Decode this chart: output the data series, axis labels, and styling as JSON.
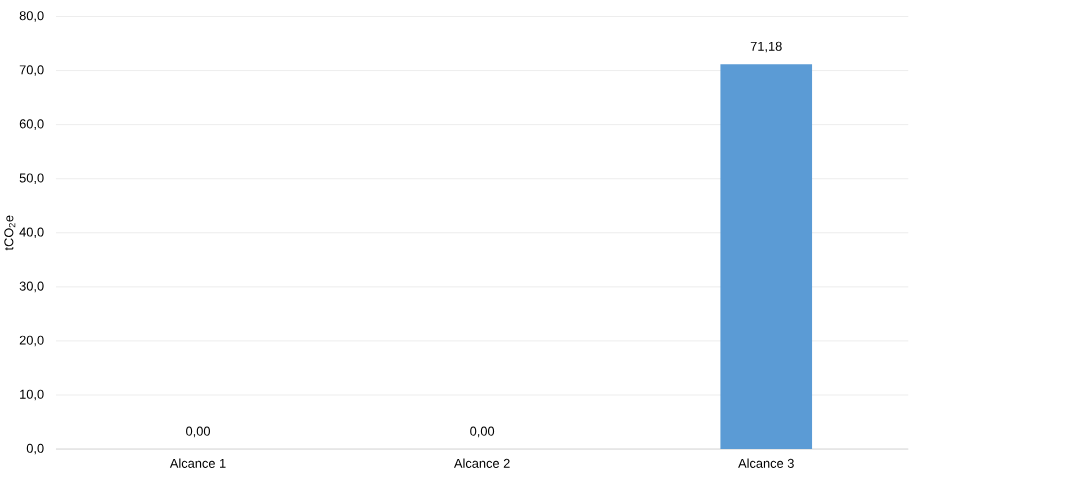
{
  "chart_data": {
    "type": "bar",
    "ylabel": "tCO$_{2}$e",
    "categories": [
      "Alcance 1",
      "Alcance 2",
      "Alcance 3"
    ],
    "values": [
      0,
      0,
      71.18
    ],
    "value_labels": [
      "0,00",
      "0,00",
      "71,18"
    ],
    "color": "#5b9bd5",
    "ylim": [
      0,
      80
    ],
    "yticks": [
      {
        "value": 0,
        "label": "0,0"
      },
      {
        "value": 10,
        "label": "10,0"
      },
      {
        "value": 20,
        "label": "20,0"
      },
      {
        "value": 30,
        "label": "30,0"
      },
      {
        "value": 40,
        "label": "40,0"
      },
      {
        "value": 50,
        "label": "50,0"
      },
      {
        "value": 60,
        "label": "60,0"
      },
      {
        "value": 70,
        "label": "70,0"
      },
      {
        "value": 80,
        "label": "80,0"
      }
    ],
    "grid": "y"
  }
}
